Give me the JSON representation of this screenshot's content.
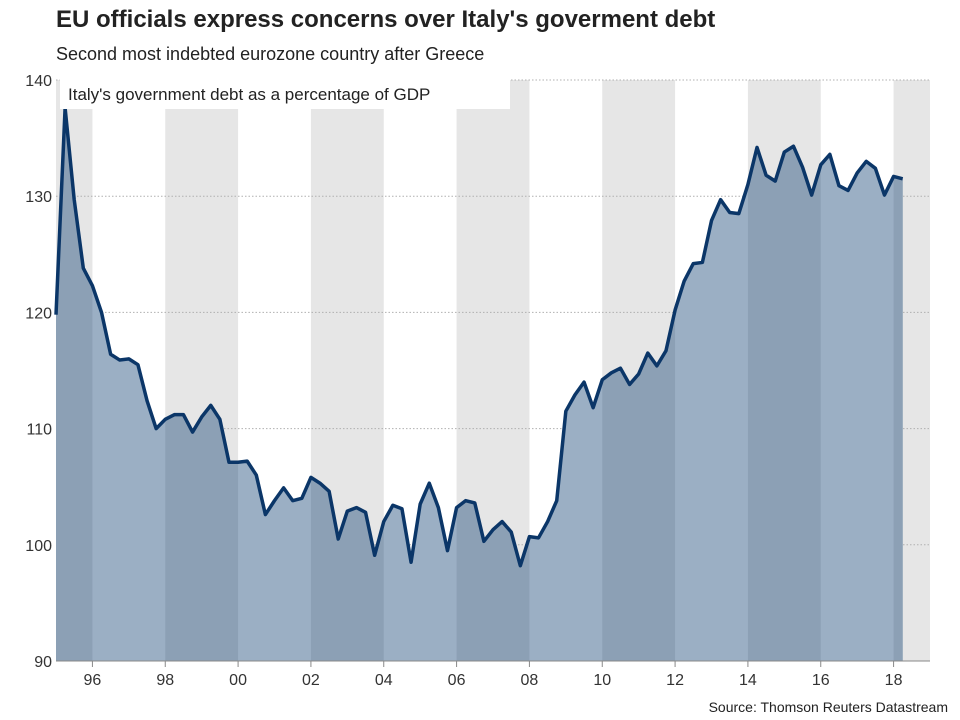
{
  "chart_data": {
    "type": "area",
    "title": "EU officials express concerns over Italy's goverment debt",
    "subtitle": "Second most indebted eurozone country after Greece",
    "legend_label": "Italy's government debt as a percentage of GDP",
    "source": "Source: Thomson Reuters Datastream",
    "xlabel": "",
    "ylabel": "",
    "xlim": [
      1995.0,
      2019.0
    ],
    "ylim": [
      90,
      140
    ],
    "y_ticks": [
      90,
      100,
      110,
      120,
      130,
      140
    ],
    "x_ticks": [
      {
        "year": 1996,
        "label": "96"
      },
      {
        "year": 1998,
        "label": "98"
      },
      {
        "year": 2000,
        "label": "00"
      },
      {
        "year": 2002,
        "label": "02"
      },
      {
        "year": 2004,
        "label": "04"
      },
      {
        "year": 2006,
        "label": "06"
      },
      {
        "year": 2008,
        "label": "08"
      },
      {
        "year": 2010,
        "label": "10"
      },
      {
        "year": 2012,
        "label": "12"
      },
      {
        "year": 2014,
        "label": "14"
      },
      {
        "year": 2016,
        "label": "16"
      },
      {
        "year": 2018,
        "label": "18"
      }
    ],
    "shaded_bands": [
      [
        1995.0,
        1996.0
      ],
      [
        1998.0,
        2000.0
      ],
      [
        2002.0,
        2004.0
      ],
      [
        2006.0,
        2008.0
      ],
      [
        2010.0,
        2012.0
      ],
      [
        2014.0,
        2016.0
      ],
      [
        2018.0,
        2019.0
      ]
    ],
    "colors": {
      "line": "#0b3668",
      "area": "#9bafc4",
      "area_on_band": "#8ca0b5",
      "band": "#e6e6e6",
      "grid": "#b0b0b0",
      "axis": "#888888"
    },
    "series": [
      {
        "name": "Italy's government debt as a percentage of GDP",
        "x": [
          1995.0,
          1995.25,
          1995.5,
          1995.75,
          1996.0,
          1996.25,
          1996.5,
          1996.75,
          1997.0,
          1997.25,
          1997.5,
          1997.75,
          1998.0,
          1998.25,
          1998.5,
          1998.75,
          1999.0,
          1999.25,
          1999.5,
          1999.75,
          2000.0,
          2000.25,
          2000.5,
          2000.75,
          2001.0,
          2001.25,
          2001.5,
          2001.75,
          2002.0,
          2002.25,
          2002.5,
          2002.75,
          2003.0,
          2003.25,
          2003.5,
          2003.75,
          2004.0,
          2004.25,
          2004.5,
          2004.75,
          2005.0,
          2005.25,
          2005.5,
          2005.75,
          2006.0,
          2006.25,
          2006.5,
          2006.75,
          2007.0,
          2007.25,
          2007.5,
          2007.75,
          2008.0,
          2008.25,
          2008.5,
          2008.75,
          2009.0,
          2009.25,
          2009.5,
          2009.75,
          2010.0,
          2010.25,
          2010.5,
          2010.75,
          2011.0,
          2011.25,
          2011.5,
          2011.75,
          2012.0,
          2012.25,
          2012.5,
          2012.75,
          2013.0,
          2013.25,
          2013.5,
          2013.75,
          2014.0,
          2014.25,
          2014.5,
          2014.75,
          2015.0,
          2015.25,
          2015.5,
          2015.75,
          2016.0,
          2016.25,
          2016.5,
          2016.75,
          2017.0,
          2017.25,
          2017.5,
          2017.75,
          2018.0,
          2018.25
        ],
        "values": [
          119.8,
          137.6,
          129.7,
          123.8,
          122.3,
          120.0,
          116.4,
          115.9,
          116.0,
          115.5,
          112.4,
          110.0,
          110.8,
          111.2,
          111.2,
          109.7,
          111.0,
          112.0,
          110.8,
          107.1,
          107.1,
          107.2,
          106.0,
          102.6,
          103.8,
          104.9,
          103.8,
          104.0,
          105.8,
          105.3,
          104.6,
          100.5,
          102.9,
          103.2,
          102.8,
          99.1,
          102.0,
          103.4,
          103.1,
          98.5,
          103.5,
          105.3,
          103.2,
          99.5,
          103.2,
          103.8,
          103.6,
          100.3,
          101.3,
          102.0,
          101.1,
          98.2,
          100.7,
          100.6,
          102.0,
          103.8,
          111.5,
          112.9,
          114.0,
          111.8,
          114.2,
          114.8,
          115.2,
          113.8,
          114.7,
          116.5,
          115.4,
          116.7,
          120.2,
          122.7,
          124.2,
          124.3,
          127.9,
          129.7,
          128.6,
          128.5,
          131.0,
          134.2,
          131.8,
          131.3,
          133.8,
          134.3,
          132.5,
          130.1,
          132.7,
          133.6,
          130.9,
          130.5,
          132.0,
          133.0,
          132.4,
          130.1,
          131.7,
          131.5
        ]
      }
    ]
  }
}
